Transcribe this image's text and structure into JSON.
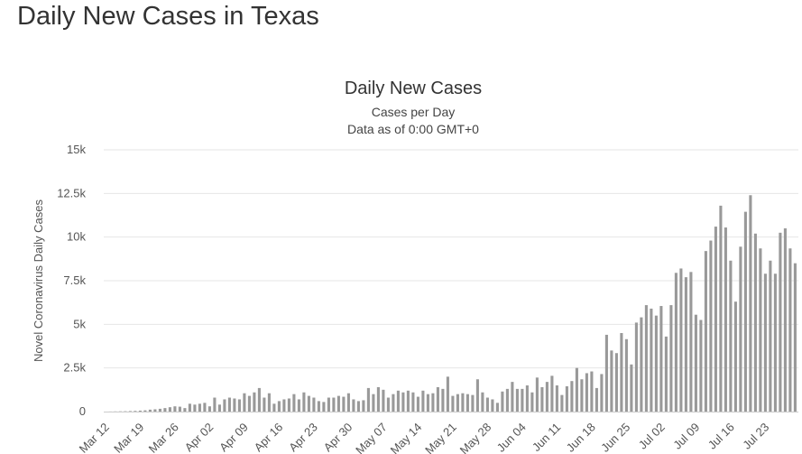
{
  "page": {
    "title": "Daily New Cases in Texas"
  },
  "chart_data": {
    "type": "bar",
    "title": "Daily New Cases",
    "subtitle": [
      "Cases per Day",
      "Data as of 0:00 GMT+0"
    ],
    "ylabel": "Novel Coronavirus Daily Cases",
    "xlabel": "",
    "ylim": [
      0,
      15000
    ],
    "yticks": [
      0,
      2500,
      5000,
      7500,
      10000,
      12500,
      15000
    ],
    "ytick_labels": [
      "0",
      "2.5k",
      "5k",
      "7.5k",
      "10k",
      "12.5k",
      "15k"
    ],
    "start_date": "Mar 12",
    "xtick_labels": [
      "Mar 12",
      "Mar 19",
      "Mar 26",
      "Apr 02",
      "Apr 09",
      "Apr 16",
      "Apr 23",
      "Apr 30",
      "May 07",
      "May 14",
      "May 21",
      "May 28",
      "Jun 04",
      "Jun 11",
      "Jun 18",
      "Jun 25",
      "Jul 02",
      "Jul 09",
      "Jul 16",
      "Jul 23"
    ],
    "grid": true,
    "bar_color": "#999999",
    "values": [
      0,
      5,
      10,
      15,
      20,
      30,
      40,
      55,
      70,
      110,
      130,
      160,
      200,
      250,
      300,
      280,
      200,
      450,
      400,
      450,
      500,
      300,
      800,
      400,
      700,
      800,
      750,
      700,
      1050,
      900,
      1100,
      1350,
      800,
      1050,
      450,
      600,
      700,
      750,
      1000,
      700,
      1100,
      900,
      800,
      600,
      550,
      800,
      800,
      900,
      850,
      1050,
      700,
      600,
      650,
      1350,
      1000,
      1400,
      1250,
      800,
      1000,
      1200,
      1100,
      1200,
      1100,
      850,
      1200,
      1000,
      1050,
      1400,
      1300,
      2000,
      900,
      1000,
      1050,
      1000,
      950,
      1850,
      1100,
      800,
      700,
      500,
      1150,
      1300,
      1700,
      1300,
      1300,
      1500,
      1100,
      1950,
      1400,
      1700,
      2050,
      1500,
      950,
      1450,
      1750,
      2500,
      1850,
      2200,
      2300,
      1350,
      2150,
      4400,
      3500,
      3350,
      4500,
      4150,
      2700,
      5100,
      5400,
      6100,
      5900,
      5500,
      6050,
      4300,
      6100,
      7950,
      8200,
      7700,
      8000,
      5550,
      5250,
      9200,
      9800,
      10600,
      11800,
      10550,
      8650,
      6300,
      9450,
      11450,
      12400,
      10200,
      9350,
      7900,
      8650,
      7900,
      10250,
      10500,
      9350,
      8500
    ]
  }
}
